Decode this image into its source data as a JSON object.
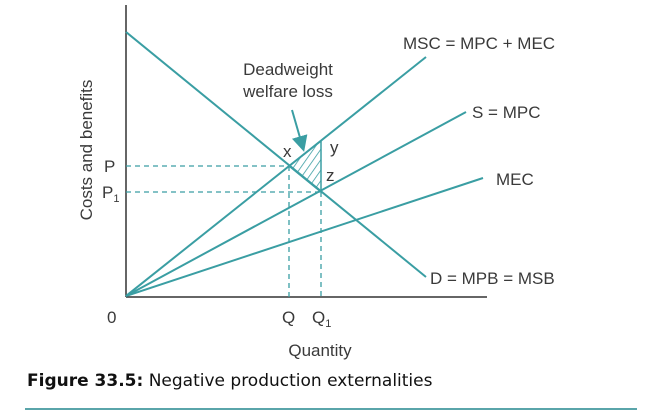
{
  "diagram": {
    "y_axis_label": "Costs and benefits",
    "x_axis_label": "Quantity",
    "origin_label": "0",
    "price_labels": {
      "p": "P",
      "p1": "P",
      "p1_sub": "1"
    },
    "quantity_labels": {
      "q": "Q",
      "q1": "Q",
      "q1_sub": "1"
    },
    "curves": {
      "msc": "MSC = MPC + MEC",
      "supply": "S = MPC",
      "mec": "MEC",
      "demand": "D = MPB = MSB"
    },
    "points": {
      "x": "x",
      "y": "y",
      "z": "z"
    },
    "annotation": {
      "line1": "Deadweight",
      "line2": "welfare loss"
    },
    "colors": {
      "curve": "#3a9ea3",
      "axis": "#333333",
      "text": "#3a3a3a"
    }
  },
  "caption": {
    "number": "Figure 33.5:",
    "text": "Negative production externalities"
  }
}
